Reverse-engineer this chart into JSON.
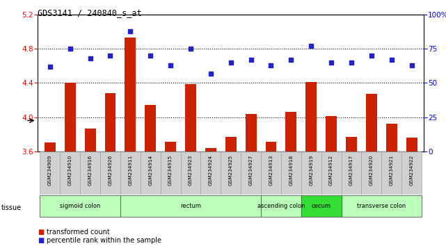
{
  "title": "GDS3141 / 240840_s_at",
  "samples": [
    "GSM234909",
    "GSM234910",
    "GSM234916",
    "GSM234926",
    "GSM234911",
    "GSM234914",
    "GSM234915",
    "GSM234923",
    "GSM234924",
    "GSM234925",
    "GSM234927",
    "GSM234913",
    "GSM234918",
    "GSM234919",
    "GSM234912",
    "GSM234917",
    "GSM234920",
    "GSM234921",
    "GSM234922"
  ],
  "bar_values": [
    3.7,
    4.4,
    3.87,
    4.28,
    4.93,
    4.14,
    3.71,
    4.39,
    3.64,
    3.77,
    4.04,
    3.71,
    4.06,
    4.41,
    4.01,
    3.77,
    4.27,
    3.92,
    3.76
  ],
  "dot_values": [
    62,
    75,
    68,
    70,
    88,
    70,
    63,
    75,
    57,
    65,
    67,
    63,
    67,
    77,
    65,
    65,
    70,
    67,
    63
  ],
  "bar_color": "#cc2200",
  "dot_color": "#2222cc",
  "ylim_left": [
    3.6,
    5.2
  ],
  "ylim_right": [
    0,
    100
  ],
  "yticks_left": [
    3.6,
    4.0,
    4.4,
    4.8,
    5.2
  ],
  "yticks_right": [
    0,
    25,
    50,
    75,
    100
  ],
  "ytick_labels_right": [
    "0",
    "25",
    "50",
    "75",
    "100%"
  ],
  "grid_values": [
    4.0,
    4.4,
    4.8
  ],
  "tissue_groups": [
    {
      "label": "sigmoid colon",
      "start": 0,
      "end": 4,
      "color": "#bbffbb"
    },
    {
      "label": "rectum",
      "start": 4,
      "end": 11,
      "color": "#bbffbb"
    },
    {
      "label": "ascending colon",
      "start": 11,
      "end": 13,
      "color": "#bbffbb"
    },
    {
      "label": "cecum",
      "start": 13,
      "end": 15,
      "color": "#33dd33"
    },
    {
      "label": "transverse colon",
      "start": 15,
      "end": 19,
      "color": "#bbffbb"
    }
  ],
  "legend_bar_label": "transformed count",
  "legend_dot_label": "percentile rank within the sample",
  "tissue_label": "tissue"
}
